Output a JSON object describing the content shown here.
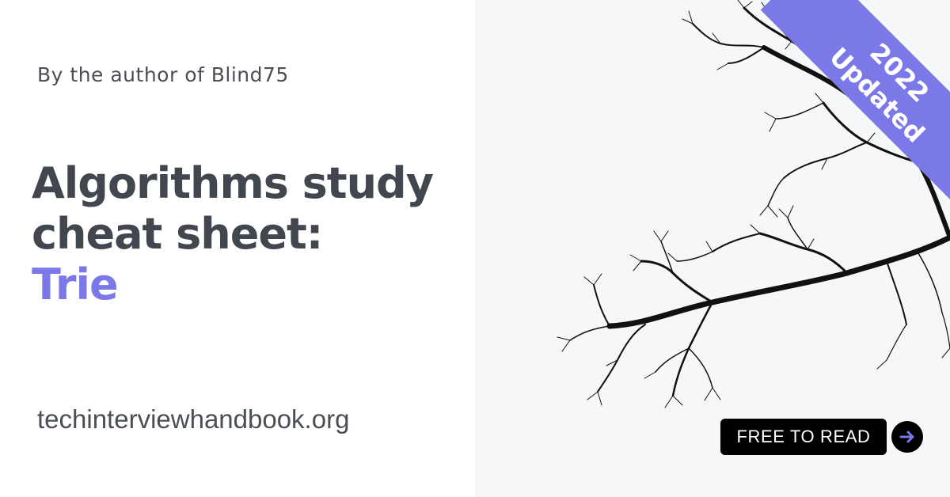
{
  "tagline": "By the author of Blind75",
  "headline": {
    "line1": "Algorithms study",
    "line2": "cheat sheet:",
    "topic": "Trie"
  },
  "site_url": "techinterviewhandbook.org",
  "ribbon": {
    "line1": "2022",
    "line2": "Updated"
  },
  "cta": {
    "label": "FREE TO READ",
    "arrow_icon": "arrow-right-icon"
  },
  "colors": {
    "accent": "#7b78e8",
    "text": "#42464e",
    "cta_bg": "#000000"
  }
}
